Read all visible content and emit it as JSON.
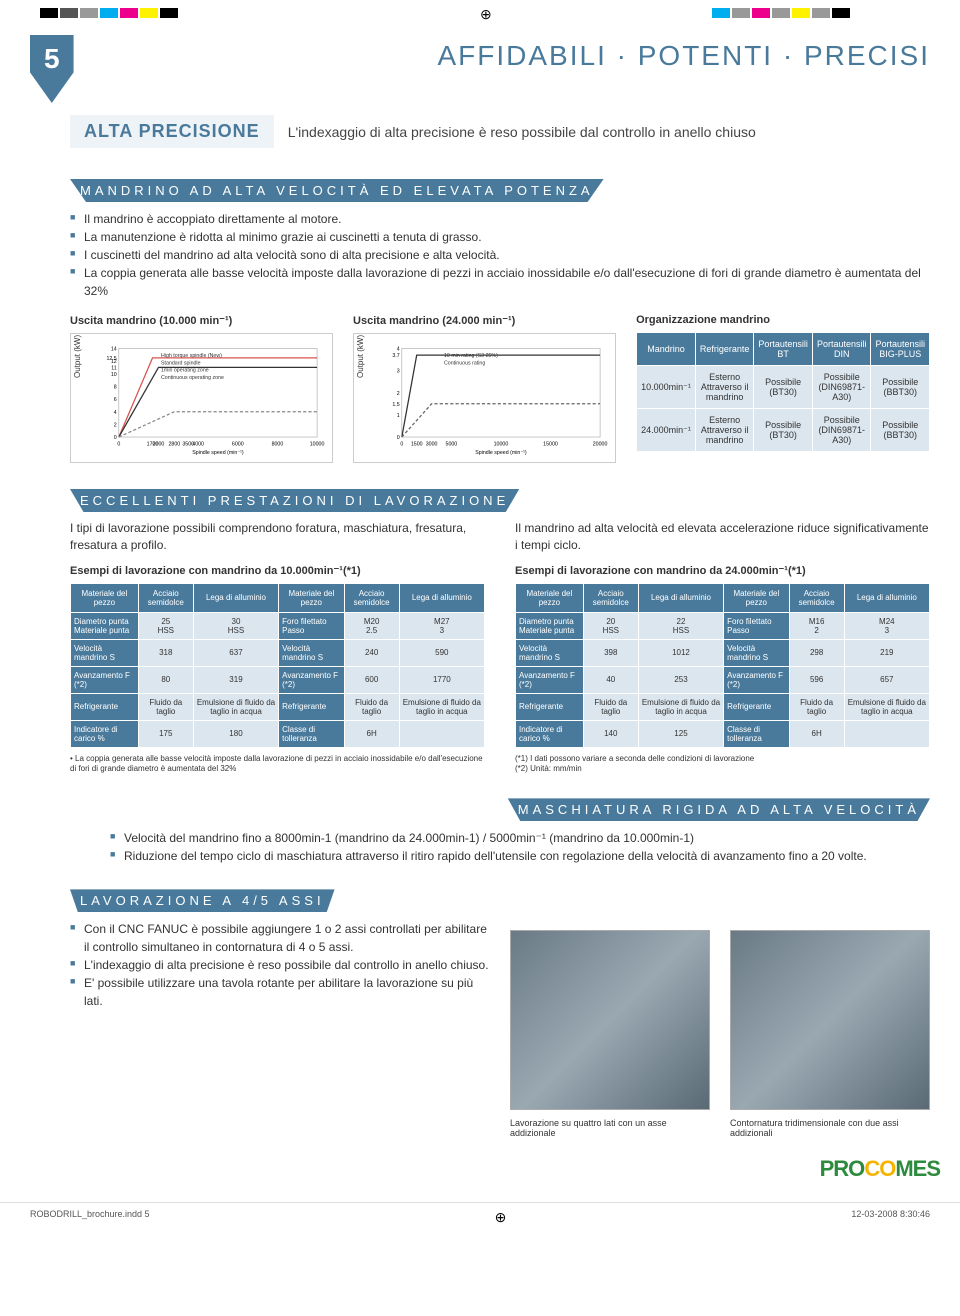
{
  "page_number": "5",
  "main_title": "AFFIDABILI · POTENTI · PRECISI",
  "badge": "ALTA PRECISIONE",
  "lead": "L'indexaggio di alta precisione è reso possibile dal controllo in anello chiuso",
  "spindle_banner": "MANDRINO AD ALTA VELOCITÀ ED ELEVATA POTENZA",
  "spindle_bullets": [
    "Il mandrino è accoppiato direttamente al motore.",
    "La manutenzione è ridotta al minimo grazie ai cuscinetti a tenuta di grasso.",
    "I cuscinetti del mandrino ad alta velocità sono di alta precisione e alta velocità.",
    "La coppia generata alle basse velocità imposte dalla lavorazione di pezzi in acciaio inossidabile e/o dall'esecuzione di fori di grande diametro è aumentata del 32%"
  ],
  "chart1": {
    "title": "Uscita mandrino (10.000 min⁻¹)",
    "ylabel": "Output (kW)",
    "xlabel": "Spindle speed (min⁻¹)",
    "ymax": 14,
    "xmax": 10000,
    "yticks": [
      0,
      2,
      4,
      6,
      8,
      10,
      11,
      12,
      12.5,
      14
    ],
    "xticks": [
      0,
      1700,
      2000,
      2800,
      3500,
      4000,
      6000,
      8000,
      10000
    ],
    "legends": [
      "High torque spindle (New)",
      "Standard spindle",
      "1min operating zone",
      "Continuous operating zone"
    ],
    "series_high_color": "#d9534f",
    "series_std_color": "#333333",
    "zone1_color": "#888",
    "series_high": [
      [
        0,
        0
      ],
      [
        1700,
        12.5
      ],
      [
        2800,
        12.5
      ],
      [
        10000,
        12.5
      ]
    ],
    "series_std": [
      [
        0,
        0
      ],
      [
        2000,
        11
      ],
      [
        3500,
        11
      ],
      [
        10000,
        11
      ]
    ],
    "zone_cont": [
      [
        0,
        0
      ],
      [
        2800,
        4
      ],
      [
        10000,
        4
      ]
    ]
  },
  "chart2": {
    "title": "Uscita mandrino (24.000 min⁻¹)",
    "ylabel": "Output (kW)",
    "xlabel": "Spindle speed (min⁻¹)",
    "ymax": 4,
    "xmax": 20000,
    "yticks": [
      0,
      1,
      1.5,
      2,
      3,
      3.7,
      4
    ],
    "xticks": [
      0,
      1500,
      3000,
      5000,
      10000,
      15000,
      20000
    ],
    "legends": [
      "10 min rating (S3 25%)",
      "Continuous rating"
    ],
    "series_s3_color": "#333",
    "series_s3": [
      [
        0,
        0
      ],
      [
        1500,
        3.7
      ],
      [
        3000,
        3.7
      ],
      [
        20000,
        3.7
      ]
    ],
    "series_cont": [
      [
        0,
        0
      ],
      [
        3000,
        1.5
      ],
      [
        20000,
        1.5
      ]
    ]
  },
  "org": {
    "title": "Organizzazione mandrino",
    "headers": [
      "Mandrino",
      "Refrigerante",
      "Portautensili BT",
      "Portautensili DIN",
      "Portautensili BIG-PLUS"
    ],
    "rows": [
      [
        "10.000min⁻¹",
        "Esterno Attraverso il mandrino",
        "Possibile (BT30)",
        "Possibile (DIN69871-A30)",
        "Possibile (BBT30)"
      ],
      [
        "24.000min⁻¹",
        "Esterno Attraverso il mandrino",
        "Possibile (BT30)",
        "Possibile (DIN69871-A30)",
        "Possibile (BBT30)"
      ]
    ]
  },
  "excell_banner": "ECCELLENTI PRESTAZIONI DI LAVORAZIONE",
  "excell_left": "I tipi di lavorazione possibili comprendono foratura, maschiatura, fresatura, fresatura a profilo.",
  "excell_right": "Il mandrino ad alta velocità ed elevata accelerazione riduce significativamente i tempi ciclo.",
  "table10_title": "Esempi di lavorazione con mandrino da 10.000min⁻¹(*1)",
  "table24_title": "Esempi di lavorazione con mandrino da 24.000min⁻¹(*1)",
  "table10": {
    "col_heads": [
      "Materiale del pezzo",
      "Acciaio semidolce",
      "Lega di alluminio",
      "Materiale del pezzo",
      "Acciaio semidolce",
      "Lega di alluminio"
    ],
    "rows": [
      [
        "Diametro punta\nMateriale punta",
        "25\nHSS",
        "30\nHSS",
        "Foro filettato\nPasso",
        "M20\n2.5",
        "M27\n3"
      ],
      [
        "Velocità mandrino S",
        "318",
        "637",
        "Velocità mandrino S",
        "240",
        "590"
      ],
      [
        "Avanzamento F (*2)",
        "80",
        "319",
        "Avanzamento F (*2)",
        "600",
        "1770"
      ],
      [
        "Refrigerante",
        "Fluido da taglio",
        "Emulsione di fluido da taglio in acqua",
        "Refrigerante",
        "Fluido da taglio",
        "Emulsione di fluido da taglio in acqua"
      ],
      [
        "Indicatore di carico %",
        "175",
        "180",
        "Classe di tolleranza",
        "6H",
        ""
      ]
    ]
  },
  "table24": {
    "col_heads": [
      "Materiale del pezzo",
      "Acciaio semidolce",
      "Lega di alluminio",
      "Materiale del pezzo",
      "Acciaio semidolce",
      "Lega di alluminio"
    ],
    "rows": [
      [
        "Diametro punta\nMateriale punta",
        "20\nHSS",
        "22\nHSS",
        "Foro filettato\nPasso",
        "M16\n2",
        "M24\n3"
      ],
      [
        "Velocità mandrino S",
        "398",
        "1012",
        "Velocità mandrino S",
        "298",
        "219"
      ],
      [
        "Avanzamento F (*2)",
        "40",
        "253",
        "Avanzamento F (*2)",
        "596",
        "657"
      ],
      [
        "Refrigerante",
        "Fluido da taglio",
        "Emulsione di fluido da taglio in acqua",
        "Refrigerante",
        "Fluido da taglio",
        "Emulsione di fluido da taglio in acqua"
      ],
      [
        "Indicatore di carico %",
        "140",
        "125",
        "Classe di tolleranza",
        "6H",
        ""
      ]
    ]
  },
  "footnote_left": "• La coppia generata alle basse velocità imposte dalla lavorazione di pezzi in acciaio inossidabile e/o dall'esecuzione di fori di grande diametro è aumentata del 32%",
  "footnote_right": "(*1) I dati possono variare a seconda delle condizioni di lavorazione\n(*2) Unità: mm/min",
  "masch_banner": "MASCHIATURA RIGIDA AD ALTA VELOCITÀ",
  "masch_bullets": [
    "Velocità del mandrino fino a 8000min-1 (mandrino da 24.000min-1) / 5000min⁻¹ (mandrino da 10.000min-1)",
    "Riduzione del tempo ciclo di maschiatura attraverso il ritiro rapido dell'utensile con regolazione della velocità di avanzamento fino a 20 volte."
  ],
  "lav_banner": "LAVORAZIONE A 4/5 ASSI",
  "lav_bullets": [
    "Con il CNC FANUC è possibile aggiungere 1 o 2 assi controllati per abilitare il controllo simultaneo in contornatura di 4 o 5 assi.",
    "L'indexaggio di alta precisione è reso possibile dal controllo in anello chiuso.",
    "E' possibile utilizzare una tavola rotante per abilitare la lavorazione su più lati."
  ],
  "caption1": "Lavorazione su quattro lati con un asse addizionale",
  "caption2": "Contornatura tridimensionale con due assi addizionali",
  "logo_parts": [
    "PRO",
    "CO",
    "MES"
  ],
  "footer_file": "ROBODRILL_brochure.indd   5",
  "footer_date": "12-03-2008   8:30:46",
  "swatches_left": [
    "#000",
    "#555",
    "#999",
    "#00aeef",
    "#ec008c",
    "#fff200",
    "#000"
  ],
  "swatches_right": [
    "#00aeef",
    "#999",
    "#ec008c",
    "#999",
    "#fff200",
    "#999",
    "#000"
  ]
}
